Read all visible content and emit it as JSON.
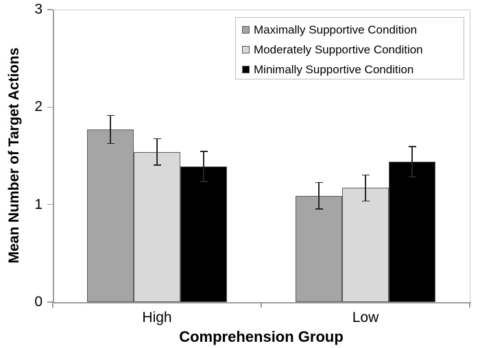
{
  "chart_data": {
    "type": "bar",
    "title": "",
    "xlabel": "Comprehension Group",
    "ylabel": "Mean Number of Target Actions",
    "categories": [
      "High",
      "Low"
    ],
    "series": [
      {
        "name": "Maximally Supportive Condition",
        "color": "#a5a5a5",
        "values": [
          1.77,
          1.09
        ],
        "errors": [
          0.15,
          0.14
        ]
      },
      {
        "name": "Moderately Supportive Condition",
        "color": "#d9d9d9",
        "values": [
          1.54,
          1.17
        ],
        "errors": [
          0.14,
          0.14
        ]
      },
      {
        "name": "Minimally Supportive Condition",
        "color": "#000000",
        "values": [
          1.39,
          1.44
        ],
        "errors": [
          0.16,
          0.16
        ]
      }
    ],
    "ylim": [
      0,
      3
    ],
    "yticks": [
      "0",
      "1",
      "2",
      "3"
    ],
    "grid": false,
    "legend_position": "top-right"
  },
  "colors": {
    "axis": "#9d9d9d",
    "plot_border": "#c9c9c9",
    "error_bar": "#262626",
    "bar_border": "#595959",
    "legend_border": "#bfbfbf",
    "text": "#000000",
    "background": "#ffffff"
  }
}
